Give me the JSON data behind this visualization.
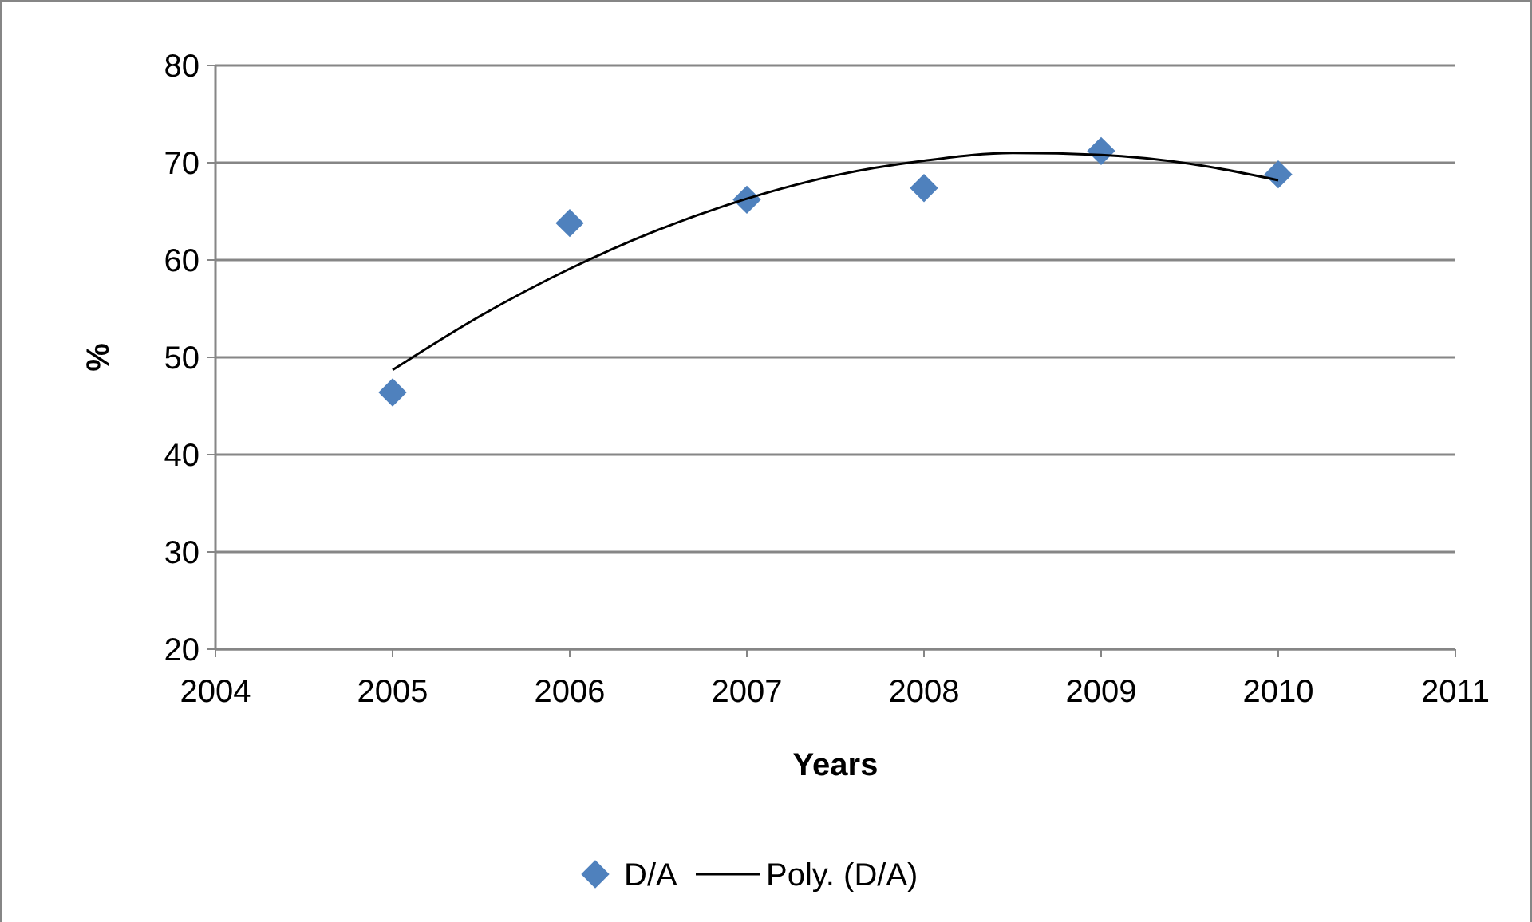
{
  "chart_data": {
    "type": "scatter",
    "xlabel": "Years",
    "ylabel": "%",
    "xlim": [
      2004,
      2011
    ],
    "xticks": [
      2004,
      2005,
      2006,
      2007,
      2008,
      2009,
      2010,
      2011
    ],
    "ylim": [
      20,
      80
    ],
    "yticks": [
      20,
      30,
      40,
      50,
      60,
      70,
      80
    ],
    "grid": "y",
    "legend": "bottom",
    "series": [
      {
        "name": "D/A",
        "color": "#4f81bd",
        "marker": "diamond",
        "x": [
          2005,
          2006,
          2007,
          2008,
          2009,
          2010
        ],
        "values": [
          46.4,
          63.8,
          66.2,
          67.4,
          71.2,
          68.8
        ]
      },
      {
        "name": "Poly. (D/A)",
        "type": "line",
        "marker": "none",
        "color": "#000000",
        "x": [
          2005,
          2005.5,
          2006,
          2006.5,
          2007,
          2007.5,
          2008,
          2008.5,
          2009,
          2009.5,
          2010
        ],
        "values": [
          48.7,
          54.3,
          59.1,
          63.1,
          66.3,
          68.7,
          70.2,
          71.0,
          70.8,
          69.9,
          68.2
        ]
      }
    ]
  }
}
